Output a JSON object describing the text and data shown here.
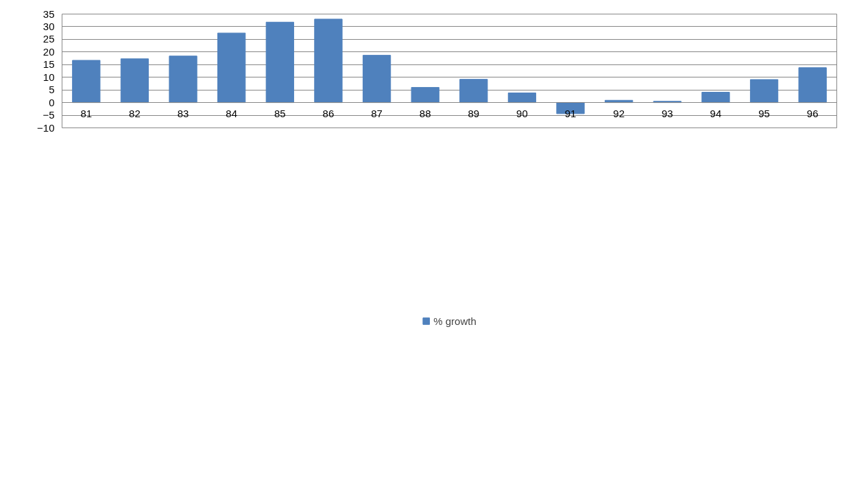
{
  "chart_data": {
    "type": "bar",
    "categories": [
      "81",
      "82",
      "83",
      "84",
      "85",
      "86",
      "87",
      "88",
      "89",
      "90",
      "91",
      "92",
      "93",
      "94",
      "95",
      "96"
    ],
    "series": [
      {
        "name": "% growth",
        "color": "#4f81bd",
        "values": [
          16.7,
          17.3,
          18.4,
          27.5,
          31.8,
          33.0,
          18.7,
          6.0,
          9.2,
          3.8,
          -4.4,
          0.9,
          0.5,
          4.1,
          9.1,
          13.8
        ]
      }
    ],
    "ylim": [
      -10,
      35
    ],
    "yticks": [
      -10,
      -5,
      0,
      5,
      10,
      15,
      20,
      25,
      30,
      35
    ],
    "grid": "y",
    "legend": "bottom"
  }
}
